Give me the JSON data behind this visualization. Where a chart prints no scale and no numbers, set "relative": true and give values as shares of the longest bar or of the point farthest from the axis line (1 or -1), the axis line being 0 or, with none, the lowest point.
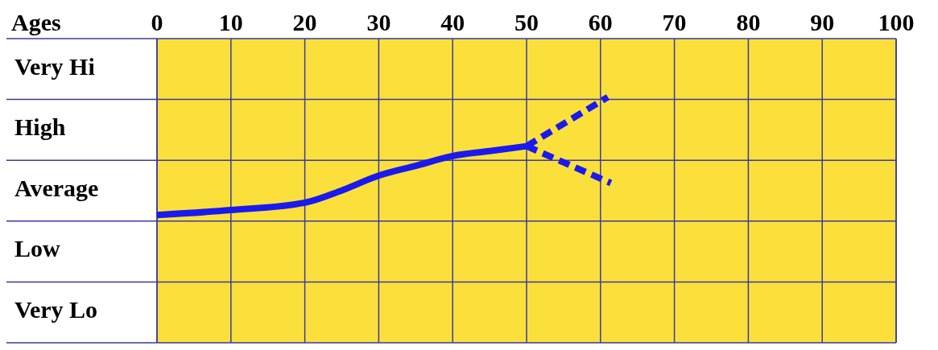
{
  "chart_data": {
    "type": "line",
    "xlabel": "Ages",
    "xlim": [
      0,
      100
    ],
    "xticks": [
      0,
      10,
      20,
      30,
      40,
      50,
      60,
      70,
      80,
      90,
      100
    ],
    "relative": true,
    "annotations": [
      "Very Hi",
      "High",
      "Average",
      "Low",
      "Very Lo"
    ],
    "grid": true,
    "marker": "none",
    "series": [
      {
        "color": "#1a1aee",
        "line_style": "solid",
        "x": [
          0,
          10,
          20,
          25,
          30,
          35,
          40,
          45,
          50
        ],
        "values": [
          0.52,
          0.54,
          0.57,
          0.62,
          0.68,
          0.72,
          0.76,
          0.78,
          0.8
        ]
      },
      {
        "color": "#1a1aee",
        "line_style": "dashed",
        "x": [
          50,
          61
        ],
        "values": [
          0.8,
          1
        ]
      },
      {
        "color": "#1a1aee",
        "line_style": "dashed",
        "x": [
          50,
          61.4
        ],
        "values": [
          0.8,
          0.65
        ]
      }
    ]
  }
}
